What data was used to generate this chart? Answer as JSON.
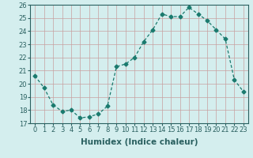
{
  "x": [
    0,
    1,
    2,
    3,
    4,
    5,
    6,
    7,
    8,
    9,
    10,
    11,
    12,
    13,
    14,
    15,
    16,
    17,
    18,
    19,
    20,
    21,
    22,
    23
  ],
  "y": [
    20.6,
    19.7,
    18.4,
    17.9,
    18.0,
    17.4,
    17.5,
    17.7,
    18.3,
    21.3,
    21.5,
    22.0,
    23.2,
    24.1,
    25.3,
    25.1,
    25.1,
    25.8,
    25.3,
    24.8,
    24.1,
    23.4,
    20.3,
    19.4
  ],
  "line_color": "#1a7a6e",
  "marker": "D",
  "marker_size": 2.5,
  "bg_color": "#d4eeee",
  "grid_major_color": "#c8a0a0",
  "grid_minor_color": "#d4bbbb",
  "xlabel": "Humidex (Indice chaleur)",
  "ylim": [
    17,
    26
  ],
  "xlim": [
    -0.5,
    23.5
  ],
  "yticks": [
    17,
    18,
    19,
    20,
    21,
    22,
    23,
    24,
    25,
    26
  ],
  "xticks": [
    0,
    1,
    2,
    3,
    4,
    5,
    6,
    7,
    8,
    9,
    10,
    11,
    12,
    13,
    14,
    15,
    16,
    17,
    18,
    19,
    20,
    21,
    22,
    23
  ],
  "tick_fontsize": 6.0,
  "xlabel_fontsize": 7.5,
  "tick_color": "#2a6060",
  "spine_color": "#2a6060"
}
